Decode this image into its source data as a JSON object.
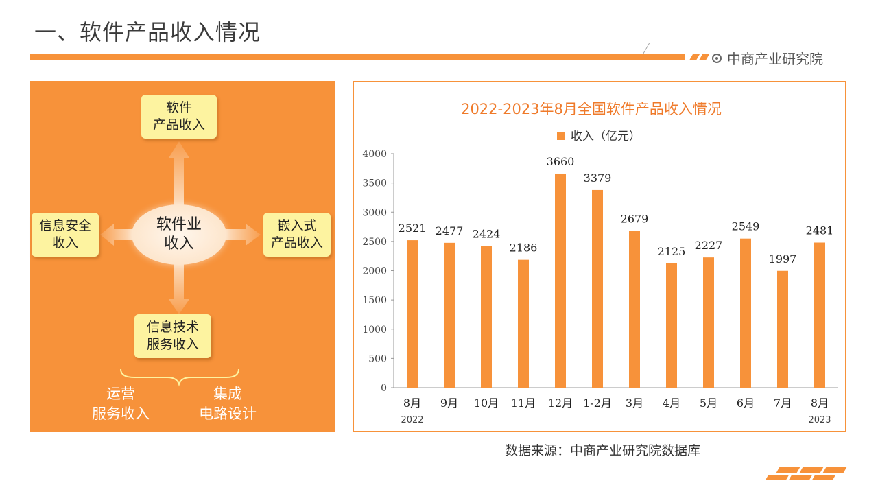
{
  "header": {
    "title": "一、软件产品收入情况",
    "brand": "中商产业研究院"
  },
  "diagram": {
    "top_box": "软件\n产品收入",
    "center": "软件业\n收入",
    "left_box": "信息安全\n收入",
    "right_box": "嵌入式\n产品收入",
    "bottom_box": "信息技术\n服务收入",
    "sub_left": "运营\n服务收入",
    "sub_right": "集成\n电路设计",
    "colors": {
      "background": "#f7923a",
      "box": "#fdf3a0"
    }
  },
  "footer": {
    "source": "数据来源：中商产业研究院数据库"
  },
  "chart_data": {
    "type": "bar",
    "title": "2022-2023年8月全国软件产品收入情况",
    "legend": "收入（亿元）",
    "legend_position": "top",
    "categories": [
      "8月",
      "9月",
      "10月",
      "11月",
      "12月",
      "1-2月",
      "3月",
      "4月",
      "5月",
      "6月",
      "7月",
      "8月"
    ],
    "year_labels": [
      {
        "label": "2022",
        "index": 0
      },
      {
        "label": "2023",
        "index": 11
      }
    ],
    "values": [
      2521,
      2477,
      2424,
      2186,
      3660,
      3379,
      2679,
      2125,
      2227,
      2549,
      1997,
      2481
    ],
    "ylim": [
      0,
      4000
    ],
    "yticks": [
      0,
      500,
      1000,
      1500,
      2000,
      2500,
      3000,
      3500,
      4000
    ],
    "grid": false,
    "bar_color": "#f7923a",
    "title_color": "#ef7a2a"
  }
}
